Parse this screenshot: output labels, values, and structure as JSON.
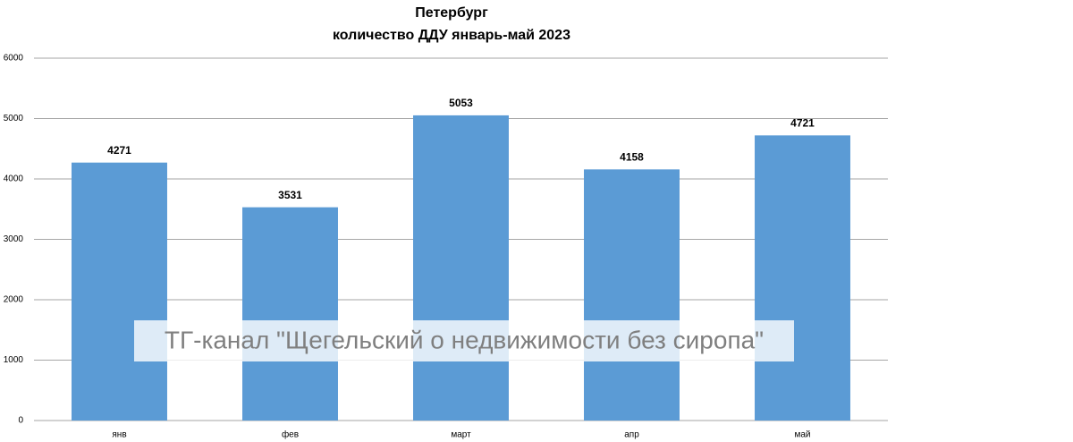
{
  "chart_data": {
    "type": "bar",
    "title": "Петербург",
    "subtitle": "количество ДДУ январь-май 2023",
    "categories": [
      "янв",
      "фев",
      "март",
      "апр",
      "май"
    ],
    "values": [
      4271,
      3531,
      5053,
      4158,
      4721
    ],
    "color": "#5b9bd5",
    "ylim": [
      0,
      6000
    ],
    "yticks": [
      0,
      1000,
      2000,
      3000,
      4000,
      5000,
      6000
    ],
    "grid": true,
    "annotation": "ТГ-канал \"Щегельский о недвижимости без сиропа\""
  }
}
